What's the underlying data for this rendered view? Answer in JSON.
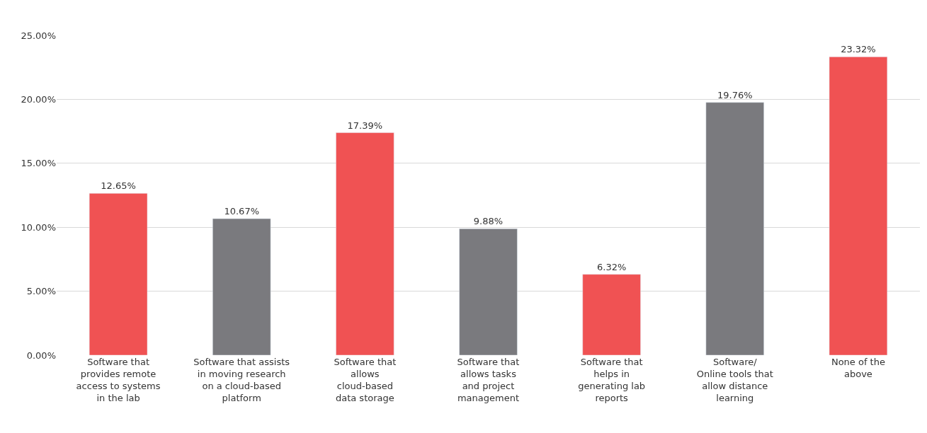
{
  "chart_data": {
    "type": "bar",
    "categories": [
      "Software that\nprovides remote\naccess to systems\nin the lab",
      "Software that assists\nin moving research\non a cloud-based\nplatform",
      "Software that\nallows\ncloud-based\ndata storage",
      "Software that\nallows tasks\nand project\nmanagement",
      "Software that\nhelps in\ngenerating lab\nreports",
      "Software/\nOnline tools that\nallow distance\nlearning",
      "None of the\nabove"
    ],
    "values": [
      12.65,
      10.67,
      17.39,
      9.88,
      6.32,
      19.76,
      23.32
    ],
    "colors": [
      "#f05253",
      "#7a7a7e",
      "#f05253",
      "#7a7a7e",
      "#f05253",
      "#7a7a7e",
      "#f05253"
    ],
    "value_labels": [
      "12.65%",
      "10.67%",
      "17.39%",
      "9.88%",
      "6.32%",
      "19.76%",
      "23.32%"
    ],
    "ylim": [
      0,
      25
    ],
    "yticks": [
      {
        "value": 0,
        "label": "0.00%"
      },
      {
        "value": 5,
        "label": "5.00%"
      },
      {
        "value": 10,
        "label": "10.00%"
      },
      {
        "value": 15,
        "label": "15.00%"
      },
      {
        "value": 20,
        "label": "20.00%"
      },
      {
        "value": 25,
        "label": "25.00%"
      }
    ],
    "grid": "y"
  }
}
